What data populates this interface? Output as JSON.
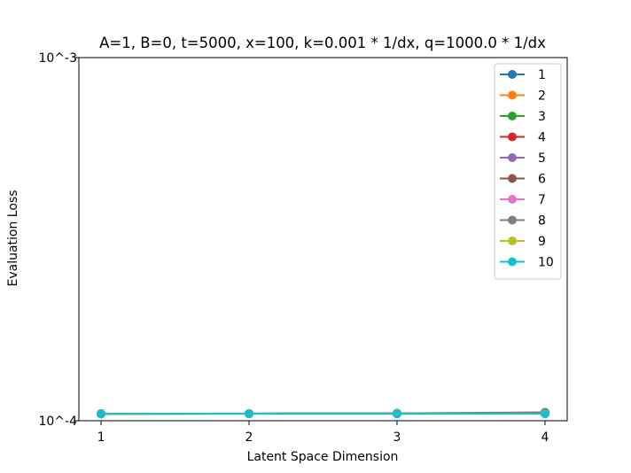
{
  "chart_data": {
    "type": "line",
    "title": "A=1, B=0, t=5000, x=100, k=0.001 * 1/dx, q=1000.0 * 1/dx",
    "xlabel": "Latent Space Dimension",
    "ylabel": "Evaluation Loss",
    "x": [
      1,
      2,
      3,
      4
    ],
    "xticks": [
      "1",
      "2",
      "3",
      "4"
    ],
    "y_scale": "log",
    "ylim": [
      0.0001,
      0.001
    ],
    "yticks": [
      {
        "value": 0.001,
        "label": "10^-3"
      },
      {
        "value": 0.0001,
        "label": "10^-4"
      }
    ],
    "grid": false,
    "legend_position": "top-right",
    "series": [
      {
        "name": "1",
        "color": "#1f77b4",
        "values": [
          0.0001045,
          0.0001046,
          0.0001048,
          0.000105
        ]
      },
      {
        "name": "2",
        "color": "#ff7f0e",
        "values": [
          0.0001045,
          0.0001046,
          0.0001047,
          0.0001048
        ]
      },
      {
        "name": "3",
        "color": "#2ca02c",
        "values": [
          0.0001045,
          0.0001046,
          0.0001047,
          0.0001048
        ]
      },
      {
        "name": "4",
        "color": "#d62728",
        "values": [
          0.0001045,
          0.0001046,
          0.0001048,
          0.000105
        ]
      },
      {
        "name": "5",
        "color": "#9467bd",
        "values": [
          0.0001045,
          0.0001047,
          0.0001048,
          0.0001055
        ]
      },
      {
        "name": "6",
        "color": "#8c564b",
        "values": [
          0.0001045,
          0.0001046,
          0.0001048,
          0.0001053
        ]
      },
      {
        "name": "7",
        "color": "#e377c2",
        "values": [
          0.0001045,
          0.0001046,
          0.0001047,
          0.0001049
        ]
      },
      {
        "name": "8",
        "color": "#7f7f7f",
        "values": [
          0.0001045,
          0.0001046,
          0.0001047,
          0.0001048
        ]
      },
      {
        "name": "9",
        "color": "#bcbd22",
        "values": [
          0.0001045,
          0.0001046,
          0.0001047,
          0.0001047
        ]
      },
      {
        "name": "10",
        "color": "#17becf",
        "values": [
          0.0001045,
          0.0001045,
          0.0001045,
          0.0001045
        ]
      }
    ]
  }
}
